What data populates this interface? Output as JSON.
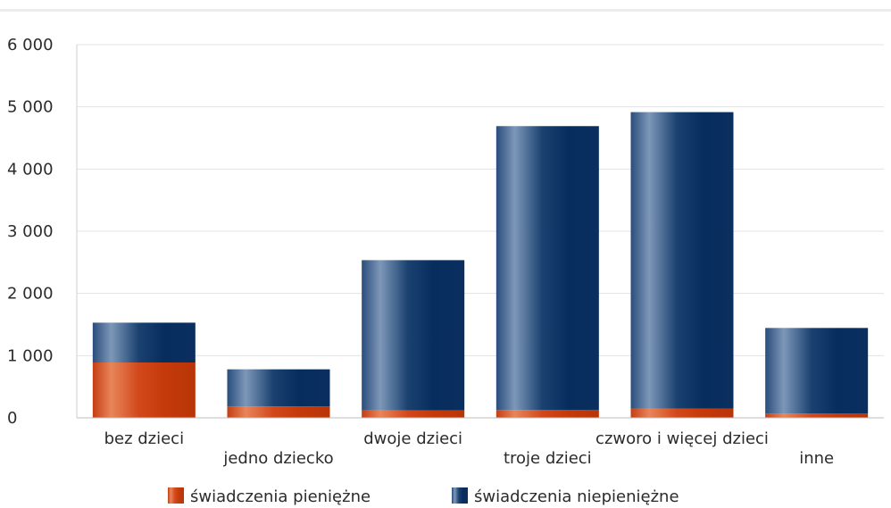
{
  "chart_data": {
    "type": "bar",
    "stacked": true,
    "categories": [
      "bez dzieci",
      "jedno dziecko",
      "dwoje dzieci",
      "troje dzieci",
      "czworo i więcej dzieci",
      "inne"
    ],
    "series": [
      {
        "name": "świadczenia pieniężne",
        "values": [
          890,
          185,
          120,
          125,
          150,
          70
        ],
        "color": "#d54a1a"
      },
      {
        "name": "świadczenia niepieniężne",
        "values": [
          640,
          595,
          2415,
          4565,
          4765,
          1375
        ],
        "color": "#0d3566"
      }
    ],
    "y_ticks": [
      "0",
      "1 000",
      "2 000",
      "3 000",
      "4 000",
      "5 000",
      "6 000"
    ],
    "ylim": [
      0,
      6000
    ],
    "grid": true,
    "legend_position": "bottom"
  }
}
